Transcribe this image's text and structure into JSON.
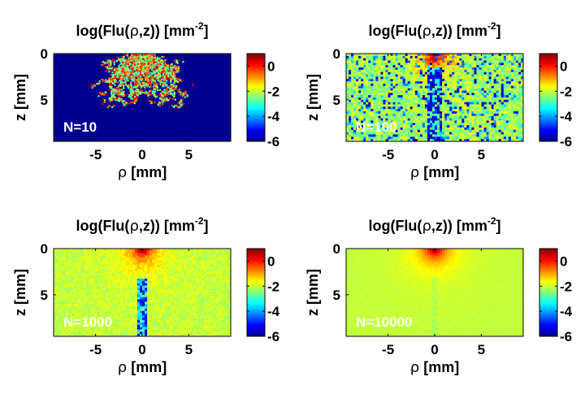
{
  "figure": {
    "colormap": "jet",
    "colormap_stops": [
      "#00008f",
      "#0000ff",
      "#00ffff",
      "#ffff00",
      "#ff0000",
      "#800000"
    ]
  },
  "chart_data": [
    {
      "type": "heatmap",
      "title_main": "log(Flu(",
      "title_rho": "ρ",
      "title_rest": ",z)) [mm",
      "title_sup": "-2",
      "title_close": "]",
      "xlabel_sym": "ρ",
      "xlabel_unit": " [mm]",
      "ylabel": "z [mm]",
      "annotation": "N=10",
      "x_ticks": [
        "-5",
        "0",
        "5"
      ],
      "x_tick_values": [
        -5,
        0,
        5
      ],
      "y_ticks": [
        "0",
        "5"
      ],
      "y_tick_values": [
        0,
        5
      ],
      "xlim": [
        -9.5,
        9.5
      ],
      "ylim": [
        0,
        9.5
      ],
      "y_reversed": true,
      "colorbar_ticks": [
        "0",
        "-2",
        "-4",
        "-6"
      ],
      "colorbar_tick_values": [
        0,
        -2,
        -4,
        -6
      ],
      "clim": [
        -6,
        1
      ],
      "photons": 10,
      "pattern": "sparse random-walk photon trajectories on a background of -6"
    },
    {
      "type": "heatmap",
      "title_main": "log(Flu(",
      "title_rho": "ρ",
      "title_rest": ",z)) [mm",
      "title_sup": "-2",
      "title_close": "]",
      "xlabel_sym": "ρ",
      "xlabel_unit": " [mm]",
      "ylabel": "z [mm]",
      "annotation": "N=100",
      "x_ticks": [
        "-5",
        "0",
        "5"
      ],
      "x_tick_values": [
        -5,
        0,
        5
      ],
      "y_ticks": [
        "0",
        "5"
      ],
      "y_tick_values": [
        0,
        5
      ],
      "xlim": [
        -9.5,
        9.5
      ],
      "ylim": [
        0,
        9.5
      ],
      "y_reversed": true,
      "colorbar_ticks": [
        "0",
        "-2",
        "-4",
        "-6"
      ],
      "colorbar_tick_values": [
        0,
        -2,
        -4,
        -6
      ],
      "clim": [
        -6,
        1
      ],
      "photons": 100,
      "pattern": "peak near 1 at rho=0, z=0; noisy plateau around -2; low-value column along rho=0 below z≈2"
    },
    {
      "type": "heatmap",
      "title_main": "log(Flu(",
      "title_rho": "ρ",
      "title_rest": ",z)) [mm",
      "title_sup": "-2",
      "title_close": "]",
      "xlabel_sym": "ρ",
      "xlabel_unit": " [mm]",
      "ylabel": "z [mm]",
      "annotation": "N=1000",
      "x_ticks": [
        "-5",
        "0",
        "5"
      ],
      "x_tick_values": [
        -5,
        0,
        5
      ],
      "y_ticks": [
        "0",
        "5"
      ],
      "y_tick_values": [
        0,
        5
      ],
      "xlim": [
        -9.5,
        9.5
      ],
      "ylim": [
        0,
        9.5
      ],
      "y_reversed": true,
      "colorbar_ticks": [
        "0",
        "-2",
        "-4",
        "-6"
      ],
      "colorbar_tick_values": [
        0,
        -2,
        -4,
        -6
      ],
      "clim": [
        -6,
        1
      ],
      "photons": 1000,
      "pattern": "smooth peak at rho=0, z=0 decaying to about -2; narrow low-value column along rho=0 below z≈3"
    },
    {
      "type": "heatmap",
      "title_main": "log(Flu(",
      "title_rho": "ρ",
      "title_rest": ",z)) [mm",
      "title_sup": "-2",
      "title_close": "]",
      "xlabel_sym": "ρ",
      "xlabel_unit": " [mm]",
      "ylabel": "z [mm]",
      "annotation": "N=10000",
      "x_ticks": [
        "-5",
        "0",
        "5"
      ],
      "x_tick_values": [
        -5,
        0,
        5
      ],
      "y_ticks": [
        "0",
        "5"
      ],
      "y_tick_values": [
        0,
        5
      ],
      "xlim": [
        -9.5,
        9.5
      ],
      "ylim": [
        0,
        9.5
      ],
      "y_reversed": true,
      "colorbar_ticks": [
        "0",
        "-2",
        "-4",
        "-6"
      ],
      "colorbar_tick_values": [
        0,
        -2,
        -4,
        -6
      ],
      "clim": [
        -6,
        1
      ],
      "photons": 10000,
      "pattern": "smooth peak at rho=0, z=0 decaying radially to about -2"
    }
  ]
}
